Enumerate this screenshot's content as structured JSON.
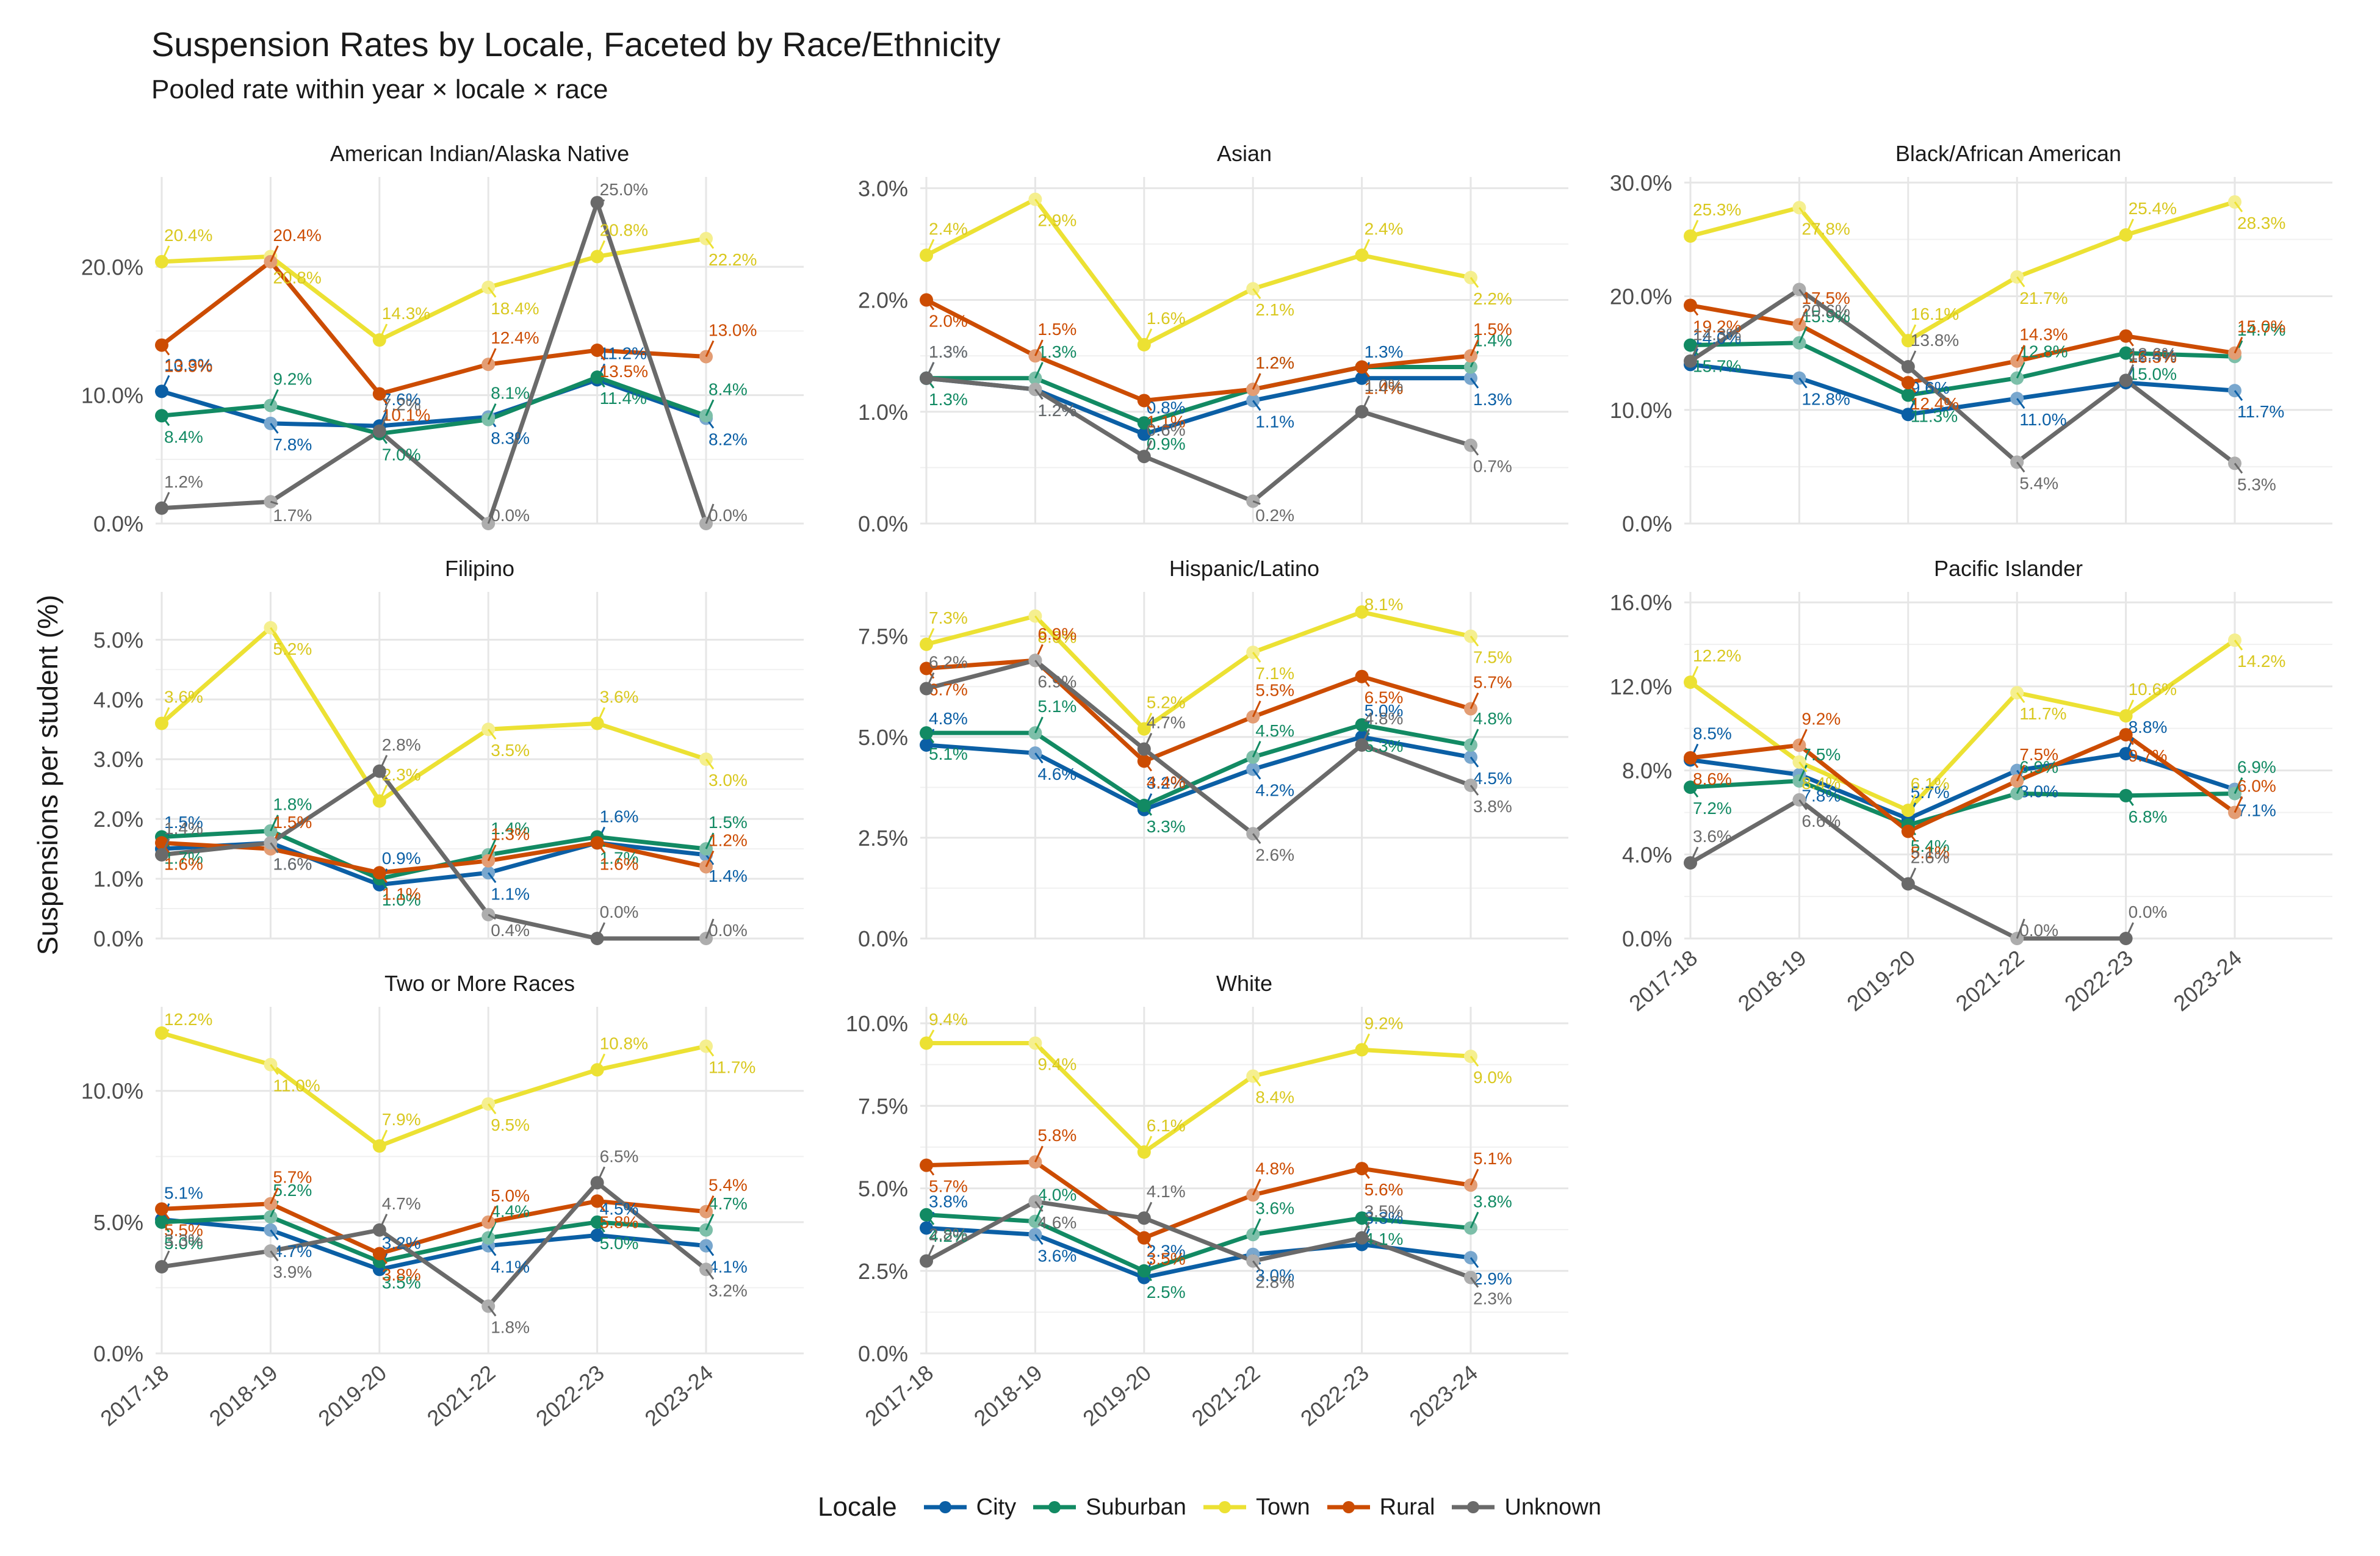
{
  "title": "Suspension Rates by Locale, Faceted by Race/Ethnicity",
  "subtitle": "Pooled rate within year × locale × race",
  "ylabel": "Suspensions per student (%)",
  "legend": {
    "title": "Locale",
    "items": [
      {
        "name": "City",
        "color": "#0b5fa5"
      },
      {
        "name": "Suburban",
        "color": "#128a63"
      },
      {
        "name": "Town",
        "color": "#ece133"
      },
      {
        "name": "Rural",
        "color": "#cc4c02"
      },
      {
        "name": "Unknown",
        "color": "#6a6a6a"
      }
    ]
  },
  "chart_data": [
    {
      "type": "line",
      "panel": "American Indian/Alaska Native",
      "x": [
        "2017-18",
        "2018-19",
        "2019-20",
        "2021-22",
        "2022-23",
        "2023-24"
      ],
      "ylim": [
        0,
        27
      ],
      "yticks": [
        0,
        10,
        20
      ],
      "ytick_labels": [
        "0.0%",
        "10.0%",
        "20.0%"
      ],
      "series": [
        {
          "name": "City",
          "values": [
            10.3,
            7.8,
            7.6,
            8.3,
            11.2,
            8.2
          ],
          "labels": [
            "10.3%",
            "7.8%",
            "7.6%",
            "8.3%",
            "11.2%",
            "8.2%"
          ]
        },
        {
          "name": "Suburban",
          "values": [
            8.4,
            9.2,
            7.0,
            8.1,
            11.4,
            8.4
          ],
          "labels": [
            "8.4%",
            "9.2%",
            "7.0%",
            "8.1%",
            "11.4%",
            "8.4%"
          ]
        },
        {
          "name": "Town",
          "values": [
            20.4,
            20.8,
            14.3,
            18.4,
            20.8,
            22.2
          ],
          "labels": [
            "20.4%",
            "20.8%",
            "14.3%",
            "18.4%",
            "20.8%",
            "22.2%"
          ]
        },
        {
          "name": "Rural",
          "values": [
            13.9,
            20.4,
            10.1,
            12.4,
            13.5,
            13.0
          ],
          "labels": [
            "13.9%",
            "20.4%",
            "10.1%",
            "12.4%",
            "13.5%",
            "13.0%"
          ]
        },
        {
          "name": "Unknown",
          "values": [
            1.2,
            1.7,
            7.2,
            0.0,
            25.0,
            0.0
          ],
          "labels": [
            "1.2%",
            "1.7%",
            "7.2%",
            "0.0%",
            "25.0%",
            "0.0%"
          ]
        }
      ]
    },
    {
      "type": "line",
      "panel": "Asian",
      "x": [
        "2017-18",
        "2018-19",
        "2019-20",
        "2021-22",
        "2022-23",
        "2023-24"
      ],
      "ylim": [
        0,
        3.1
      ],
      "yticks": [
        0,
        1,
        2,
        3
      ],
      "ytick_labels": [
        "0.0%",
        "1.0%",
        "2.0%",
        "3.0%"
      ],
      "series": [
        {
          "name": "City",
          "values": [
            1.3,
            1.2,
            0.8,
            1.1,
            1.3,
            1.3
          ],
          "labels": [
            "1.3%",
            "1.2%",
            "0.8%",
            "1.1%",
            "1.3%",
            "1.3%"
          ]
        },
        {
          "name": "Suburban",
          "values": [
            1.3,
            1.3,
            0.9,
            1.2,
            1.4,
            1.4
          ],
          "labels": [
            "1.3%",
            "1.3%",
            "0.9%",
            "1.2%",
            "1.4%",
            "1.4%"
          ]
        },
        {
          "name": "Town",
          "values": [
            2.4,
            2.9,
            1.6,
            2.1,
            2.4,
            2.2
          ],
          "labels": [
            "2.4%",
            "2.9%",
            "1.6%",
            "2.1%",
            "2.4%",
            "2.2%"
          ]
        },
        {
          "name": "Rural",
          "values": [
            2.0,
            1.5,
            1.1,
            1.2,
            1.4,
            1.5
          ],
          "labels": [
            "2.0%",
            "1.5%",
            "1.1%",
            "1.2%",
            "1.4%",
            "1.5%"
          ]
        },
        {
          "name": "Unknown",
          "values": [
            1.3,
            1.2,
            0.6,
            0.2,
            1.0,
            0.7
          ],
          "labels": [
            "1.3%",
            "1.2%",
            "0.6%",
            "0.2%",
            "1.0%",
            "0.7%"
          ]
        }
      ]
    },
    {
      "type": "line",
      "panel": "Black/African American",
      "x": [
        "2017-18",
        "2018-19",
        "2019-20",
        "2021-22",
        "2022-23",
        "2023-24"
      ],
      "ylim": [
        0,
        30.5
      ],
      "yticks": [
        0,
        10,
        20,
        30
      ],
      "ytick_labels": [
        "0.0%",
        "10.0%",
        "20.0%",
        "30.0%"
      ],
      "series": [
        {
          "name": "City",
          "values": [
            14.0,
            12.8,
            9.6,
            11.0,
            12.4,
            11.7
          ],
          "labels": [
            "14.0%",
            "12.8%",
            "9.6%",
            "11.0%",
            "12.4%",
            "11.7%"
          ]
        },
        {
          "name": "Suburban",
          "values": [
            15.7,
            15.9,
            11.3,
            12.8,
            15.0,
            14.7
          ],
          "labels": [
            "15.7%",
            "15.9%",
            "11.3%",
            "12.8%",
            "15.0%",
            "14.7%"
          ]
        },
        {
          "name": "Town",
          "values": [
            25.3,
            27.8,
            16.1,
            21.7,
            25.4,
            28.3
          ],
          "labels": [
            "25.3%",
            "27.8%",
            "16.1%",
            "21.7%",
            "25.4%",
            "28.3%"
          ]
        },
        {
          "name": "Rural",
          "values": [
            19.2,
            17.5,
            12.4,
            14.3,
            16.5,
            15.0
          ],
          "labels": [
            "19.2%",
            "17.5%",
            "12.4%",
            "14.3%",
            "16.5%",
            "15.0%"
          ]
        },
        {
          "name": "Unknown",
          "values": [
            14.3,
            20.6,
            13.8,
            5.4,
            12.6,
            5.3
          ],
          "labels": [
            "14.3%",
            "20.6%",
            "13.8%",
            "5.4%",
            "12.6%",
            "5.3%"
          ]
        }
      ]
    },
    {
      "type": "line",
      "panel": "Filipino",
      "x": [
        "2017-18",
        "2018-19",
        "2019-20",
        "2021-22",
        "2022-23",
        "2023-24"
      ],
      "ylim": [
        0,
        5.8
      ],
      "yticks": [
        0,
        1,
        2,
        3,
        4,
        5
      ],
      "ytick_labels": [
        "0.0%",
        "1.0%",
        "2.0%",
        "3.0%",
        "4.0%",
        "5.0%"
      ],
      "series": [
        {
          "name": "City",
          "values": [
            1.5,
            1.6,
            0.9,
            1.1,
            1.6,
            1.4
          ],
          "labels": [
            "1.5%",
            "1.6%",
            "0.9%",
            "1.1%",
            "1.6%",
            "1.4%"
          ]
        },
        {
          "name": "Suburban",
          "values": [
            1.7,
            1.8,
            1.0,
            1.4,
            1.7,
            1.5
          ],
          "labels": [
            "1.7%",
            "1.8%",
            "1.0%",
            "1.4%",
            "1.7%",
            "1.5%"
          ]
        },
        {
          "name": "Town",
          "values": [
            3.6,
            5.2,
            2.3,
            3.5,
            3.6,
            3.0
          ],
          "labels": [
            "3.6%",
            "5.2%",
            "2.3%",
            "3.5%",
            "3.6%",
            "3.0%"
          ]
        },
        {
          "name": "Rural",
          "values": [
            1.6,
            1.5,
            1.1,
            1.3,
            1.6,
            1.2
          ],
          "labels": [
            "1.6%",
            "1.5%",
            "1.1%",
            "1.3%",
            "1.6%",
            "1.2%"
          ]
        },
        {
          "name": "Unknown",
          "values": [
            1.4,
            1.6,
            2.8,
            0.4,
            0.0,
            0.0
          ],
          "labels": [
            "1.4%",
            "1.6%",
            "2.8%",
            "0.4%",
            "0.0%",
            "0.0%"
          ]
        }
      ]
    },
    {
      "type": "line",
      "panel": "Hispanic/Latino",
      "x": [
        "2017-18",
        "2018-19",
        "2019-20",
        "2021-22",
        "2022-23",
        "2023-24"
      ],
      "ylim": [
        0,
        8.6
      ],
      "yticks": [
        0,
        2.5,
        5,
        7.5
      ],
      "ytick_labels": [
        "0.0%",
        "2.5%",
        "5.0%",
        "7.5%"
      ],
      "series": [
        {
          "name": "City",
          "values": [
            4.8,
            4.6,
            3.2,
            4.2,
            5.0,
            4.5
          ],
          "labels": [
            "4.8%",
            "4.6%",
            "3.2%",
            "4.2%",
            "5.0%",
            "4.5%"
          ]
        },
        {
          "name": "Suburban",
          "values": [
            5.1,
            5.1,
            3.3,
            4.5,
            5.3,
            4.8
          ],
          "labels": [
            "5.1%",
            "5.1%",
            "3.3%",
            "4.5%",
            "5.3%",
            "4.8%"
          ]
        },
        {
          "name": "Town",
          "values": [
            7.3,
            8.0,
            5.2,
            7.1,
            8.1,
            7.5
          ],
          "labels": [
            "7.3%",
            "8.0%",
            "5.2%",
            "7.1%",
            "8.1%",
            "7.5%"
          ]
        },
        {
          "name": "Rural",
          "values": [
            6.7,
            6.9,
            4.4,
            5.5,
            6.5,
            5.7
          ],
          "labels": [
            "6.7%",
            "6.9%",
            "4.4%",
            "5.5%",
            "6.5%",
            "5.7%"
          ]
        },
        {
          "name": "Unknown",
          "values": [
            6.2,
            6.9,
            4.7,
            2.6,
            4.8,
            3.8
          ],
          "labels": [
            "6.2%",
            "6.9%",
            "4.7%",
            "2.6%",
            "4.8%",
            "3.8%"
          ]
        }
      ]
    },
    {
      "type": "line",
      "panel": "Pacific Islander",
      "x": [
        "2017-18",
        "2018-19",
        "2019-20",
        "2021-22",
        "2022-23",
        "2023-24"
      ],
      "ylim": [
        0,
        16.5
      ],
      "yticks": [
        0,
        4,
        8,
        12,
        16
      ],
      "ytick_labels": [
        "0.0%",
        "4.0%",
        "8.0%",
        "12.0%",
        "16.0%"
      ],
      "series": [
        {
          "name": "City",
          "values": [
            8.5,
            7.8,
            5.7,
            8.0,
            8.8,
            7.1
          ],
          "labels": [
            "8.5%",
            "7.8%",
            "5.7%",
            "8.0%",
            "8.8%",
            "7.1%"
          ]
        },
        {
          "name": "Suburban",
          "values": [
            7.2,
            7.5,
            5.4,
            6.9,
            6.8,
            6.9
          ],
          "labels": [
            "7.2%",
            "7.5%",
            "5.4%",
            "6.9%",
            "6.8%",
            "6.9%"
          ]
        },
        {
          "name": "Town",
          "values": [
            12.2,
            8.4,
            6.1,
            11.7,
            10.6,
            14.2
          ],
          "labels": [
            "12.2%",
            "8.4%",
            "6.1%",
            "11.7%",
            "10.6%",
            "14.2%"
          ]
        },
        {
          "name": "Rural",
          "values": [
            8.6,
            9.2,
            5.1,
            7.5,
            9.7,
            6.0
          ],
          "labels": [
            "8.6%",
            "9.2%",
            "5.1%",
            "7.5%",
            "9.7%",
            "6.0%"
          ]
        },
        {
          "name": "Unknown",
          "values": [
            3.6,
            6.6,
            2.6,
            0.0,
            0.0,
            null
          ],
          "labels": [
            "3.6%",
            "6.6%",
            "2.6%",
            "0.0%",
            "0.0%",
            ""
          ]
        }
      ]
    },
    {
      "type": "line",
      "panel": "Two or More Races",
      "x": [
        "2017-18",
        "2018-19",
        "2019-20",
        "2021-22",
        "2022-23",
        "2023-24"
      ],
      "ylim": [
        0,
        13.2
      ],
      "yticks": [
        0,
        5,
        10
      ],
      "ytick_labels": [
        "0.0%",
        "5.0%",
        "10.0%"
      ],
      "series": [
        {
          "name": "City",
          "values": [
            5.1,
            4.7,
            3.2,
            4.1,
            4.5,
            4.1
          ],
          "labels": [
            "5.1%",
            "4.7%",
            "3.2%",
            "4.1%",
            "4.5%",
            "4.1%"
          ]
        },
        {
          "name": "Suburban",
          "values": [
            5.0,
            5.2,
            3.5,
            4.4,
            5.0,
            4.7
          ],
          "labels": [
            "5.0%",
            "5.2%",
            "3.5%",
            "4.4%",
            "5.0%",
            "4.7%"
          ]
        },
        {
          "name": "Town",
          "values": [
            12.2,
            11.0,
            7.9,
            9.5,
            10.8,
            11.7
          ],
          "labels": [
            "12.2%",
            "11.0%",
            "7.9%",
            "9.5%",
            "10.8%",
            "11.7%"
          ]
        },
        {
          "name": "Rural",
          "values": [
            5.5,
            5.7,
            3.8,
            5.0,
            5.8,
            5.4
          ],
          "labels": [
            "5.5%",
            "5.7%",
            "3.8%",
            "5.0%",
            "5.8%",
            "5.4%"
          ]
        },
        {
          "name": "Unknown",
          "values": [
            3.3,
            3.9,
            4.7,
            1.8,
            6.5,
            3.2
          ],
          "labels": [
            "3.3%",
            "3.9%",
            "4.7%",
            "1.8%",
            "6.5%",
            "3.2%"
          ]
        }
      ]
    },
    {
      "type": "line",
      "panel": "White",
      "x": [
        "2017-18",
        "2018-19",
        "2019-20",
        "2021-22",
        "2022-23",
        "2023-24"
      ],
      "ylim": [
        0,
        10.5
      ],
      "yticks": [
        0,
        2.5,
        5,
        7.5,
        10
      ],
      "ytick_labels": [
        "0.0%",
        "2.5%",
        "5.0%",
        "7.5%",
        "10.0%"
      ],
      "series": [
        {
          "name": "City",
          "values": [
            3.8,
            3.6,
            2.3,
            3.0,
            3.3,
            2.9
          ],
          "labels": [
            "3.8%",
            "3.6%",
            "2.3%",
            "3.0%",
            "3.3%",
            "2.9%"
          ]
        },
        {
          "name": "Suburban",
          "values": [
            4.2,
            4.0,
            2.5,
            3.6,
            4.1,
            3.8
          ],
          "labels": [
            "4.2%",
            "4.0%",
            "2.5%",
            "3.6%",
            "4.1%",
            "3.8%"
          ]
        },
        {
          "name": "Town",
          "values": [
            9.4,
            9.4,
            6.1,
            8.4,
            9.2,
            9.0
          ],
          "labels": [
            "9.4%",
            "9.4%",
            "6.1%",
            "8.4%",
            "9.2%",
            "9.0%"
          ]
        },
        {
          "name": "Rural",
          "values": [
            5.7,
            5.8,
            3.5,
            4.8,
            5.6,
            5.1
          ],
          "labels": [
            "5.7%",
            "5.8%",
            "3.5%",
            "4.8%",
            "5.6%",
            "5.1%"
          ]
        },
        {
          "name": "Unknown",
          "values": [
            2.8,
            4.6,
            4.1,
            2.8,
            3.5,
            2.3
          ],
          "labels": [
            "2.8%",
            "4.6%",
            "4.1%",
            "2.8%",
            "3.5%",
            "2.3%"
          ]
        }
      ]
    }
  ]
}
